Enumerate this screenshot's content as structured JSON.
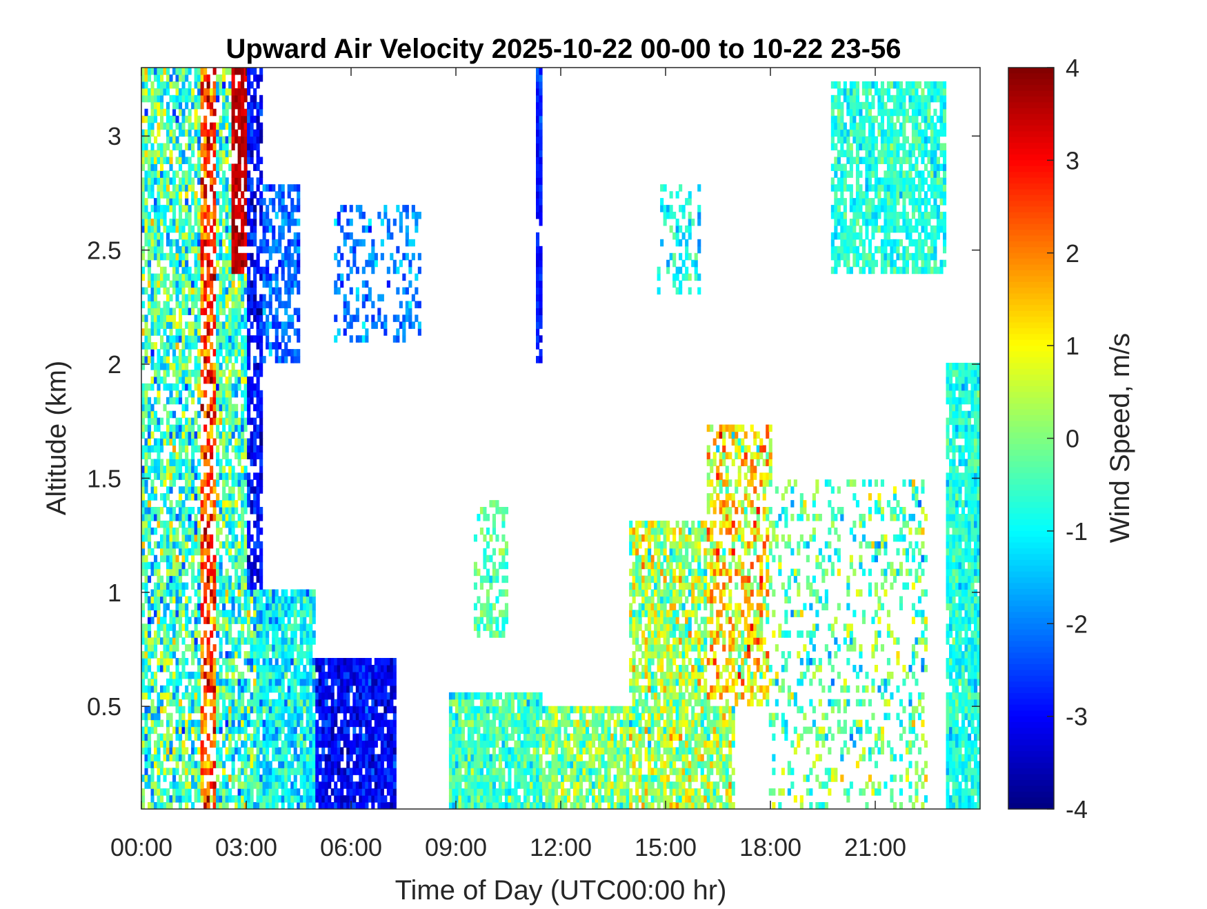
{
  "chart_data": {
    "type": "heatmap",
    "title": "Upward Air Velocity 2025-10-22 00-00 to 10-22 23-56",
    "xlabel": "Time of Day (UTC00:00 hr)",
    "ylabel": "Altitude (km)",
    "x_unit": "hours",
    "xlim": [
      0,
      24
    ],
    "ylim": [
      0.05,
      3.3
    ],
    "x_tick_values": [
      0,
      3,
      6,
      9,
      12,
      15,
      18,
      21
    ],
    "x_tick_labels": [
      "00:00",
      "03:00",
      "06:00",
      "09:00",
      "12:00",
      "15:00",
      "18:00",
      "21:00"
    ],
    "y_tick_values": [
      0.5,
      1,
      1.5,
      2,
      2.5,
      3
    ],
    "y_tick_labels": [
      "0.5",
      "1",
      "1.5",
      "2",
      "2.5",
      "3"
    ],
    "colorbar": {
      "label": "Wind Speed, m/s",
      "colormap": "jet",
      "clim": [
        -4,
        4
      ],
      "tick_values": [
        4,
        3,
        2,
        1,
        0,
        -1,
        -2,
        -3,
        -4
      ],
      "tick_labels": [
        "4",
        "3",
        "2",
        "1",
        "0",
        "-1",
        "-2",
        "-3",
        "-4"
      ]
    },
    "regions": [
      {
        "x": [
          0.0,
          3.3
        ],
        "y": [
          0.05,
          3.3
        ],
        "mean": -0.5,
        "spread": 1.8,
        "density": 0.75
      },
      {
        "x": [
          1.7,
          2.1
        ],
        "y": [
          0.05,
          3.3
        ],
        "mean": 2.5,
        "spread": 1.5,
        "density": 0.6
      },
      {
        "x": [
          2.6,
          3.2
        ],
        "y": [
          2.4,
          3.3
        ],
        "mean": 3.5,
        "spread": 0.5,
        "density": 0.8
      },
      {
        "x": [
          3.0,
          3.5
        ],
        "y": [
          1.0,
          3.3
        ],
        "mean": -3.0,
        "spread": 0.8,
        "density": 0.7
      },
      {
        "x": [
          3.3,
          5.0
        ],
        "y": [
          0.05,
          1.0
        ],
        "mean": -1.0,
        "spread": 1.2,
        "density": 0.9
      },
      {
        "x": [
          3.5,
          4.5
        ],
        "y": [
          2.0,
          2.8
        ],
        "mean": -2.2,
        "spread": 0.8,
        "density": 0.55
      },
      {
        "x": [
          5.0,
          7.3
        ],
        "y": [
          0.05,
          0.7
        ],
        "mean": -3.0,
        "spread": 0.8,
        "density": 0.9
      },
      {
        "x": [
          5.5,
          8.0
        ],
        "y": [
          2.1,
          2.7
        ],
        "mean": -2.0,
        "spread": 0.9,
        "density": 0.3
      },
      {
        "x": [
          8.8,
          11.5
        ],
        "y": [
          0.05,
          0.55
        ],
        "mean": -0.5,
        "spread": 1.0,
        "density": 0.9
      },
      {
        "x": [
          9.5,
          10.5
        ],
        "y": [
          0.8,
          1.4
        ],
        "mean": -0.3,
        "spread": 0.8,
        "density": 0.4
      },
      {
        "x": [
          11.3,
          11.5
        ],
        "y": [
          2.0,
          3.3
        ],
        "mean": -2.8,
        "spread": 0.6,
        "density": 0.9
      },
      {
        "x": [
          11.5,
          14.5
        ],
        "y": [
          0.05,
          0.5
        ],
        "mean": 0.0,
        "spread": 1.2,
        "density": 0.85
      },
      {
        "x": [
          14.0,
          17.0
        ],
        "y": [
          0.05,
          1.3
        ],
        "mean": 0.3,
        "spread": 1.5,
        "density": 0.8
      },
      {
        "x": [
          16.2,
          18.0
        ],
        "y": [
          0.5,
          1.75
        ],
        "mean": 1.0,
        "spread": 1.8,
        "density": 0.55
      },
      {
        "x": [
          14.8,
          16.0
        ],
        "y": [
          2.3,
          2.8
        ],
        "mean": -1.0,
        "spread": 1.0,
        "density": 0.3
      },
      {
        "x": [
          18.0,
          22.5
        ],
        "y": [
          0.05,
          1.5
        ],
        "mean": -0.3,
        "spread": 1.6,
        "density": 0.25
      },
      {
        "x": [
          19.7,
          23.0
        ],
        "y": [
          2.4,
          3.25
        ],
        "mean": -0.7,
        "spread": 0.8,
        "density": 0.75
      },
      {
        "x": [
          23.0,
          24.0
        ],
        "y": [
          0.05,
          2.0
        ],
        "mean": -0.8,
        "spread": 0.8,
        "density": 0.9
      }
    ]
  }
}
